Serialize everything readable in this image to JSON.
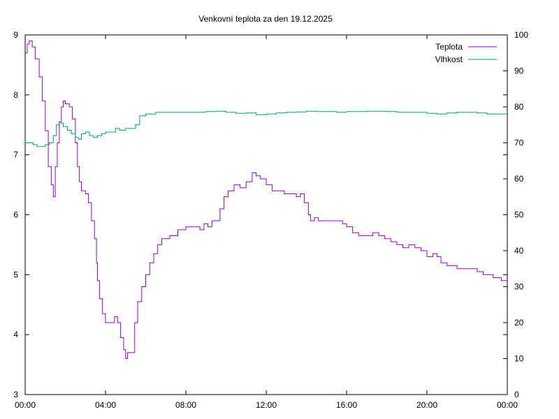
{
  "chart_data": {
    "type": "line",
    "title": "Venkovní teplota za den 19.12.2025",
    "xlabel": "",
    "ylabel": "",
    "y2label": "",
    "x_range_hours": [
      0,
      24
    ],
    "x_ticks": [
      {
        "hour": 0,
        "label": "00:00"
      },
      {
        "hour": 4,
        "label": "04:00"
      },
      {
        "hour": 8,
        "label": "08:00"
      },
      {
        "hour": 12,
        "label": "12:00"
      },
      {
        "hour": 16,
        "label": "16:00"
      },
      {
        "hour": 20,
        "label": "20:00"
      },
      {
        "hour": 24,
        "label": "00:00"
      }
    ],
    "y_left": {
      "range": [
        3,
        9
      ],
      "ticks": [
        "3",
        "4",
        "5",
        "6",
        "7",
        "8",
        "9"
      ]
    },
    "y_right": {
      "range": [
        0,
        100
      ],
      "ticks": [
        "0",
        "10",
        "20",
        "30",
        "40",
        "50",
        "60",
        "70",
        "80",
        "90",
        "100"
      ]
    },
    "grid": false,
    "legend_position": "top-right",
    "series": [
      {
        "name": "Teplota",
        "axis": "left",
        "color": "#9400d3",
        "points": [
          [
            0.0,
            8.7
          ],
          [
            0.1,
            8.85
          ],
          [
            0.2,
            8.9
          ],
          [
            0.35,
            8.8
          ],
          [
            0.5,
            8.6
          ],
          [
            0.7,
            8.3
          ],
          [
            0.85,
            7.9
          ],
          [
            1.0,
            7.4
          ],
          [
            1.15,
            6.8
          ],
          [
            1.3,
            6.5
          ],
          [
            1.4,
            6.3
          ],
          [
            1.5,
            6.8
          ],
          [
            1.6,
            7.2
          ],
          [
            1.7,
            7.55
          ],
          [
            1.8,
            7.8
          ],
          [
            1.9,
            7.9
          ],
          [
            2.0,
            7.85
          ],
          [
            2.2,
            7.8
          ],
          [
            2.35,
            7.6
          ],
          [
            2.5,
            7.2
          ],
          [
            2.6,
            6.8
          ],
          [
            2.7,
            6.55
          ],
          [
            2.8,
            6.4
          ],
          [
            3.0,
            6.35
          ],
          [
            3.15,
            6.2
          ],
          [
            3.3,
            5.9
          ],
          [
            3.45,
            5.6
          ],
          [
            3.55,
            5.2
          ],
          [
            3.6,
            4.9
          ],
          [
            3.7,
            4.6
          ],
          [
            3.85,
            4.35
          ],
          [
            4.0,
            4.2
          ],
          [
            4.3,
            4.2
          ],
          [
            4.45,
            4.3
          ],
          [
            4.6,
            4.2
          ],
          [
            4.75,
            3.95
          ],
          [
            4.9,
            3.75
          ],
          [
            5.0,
            3.6
          ],
          [
            5.1,
            3.7
          ],
          [
            5.3,
            3.7
          ],
          [
            5.45,
            4.2
          ],
          [
            5.6,
            4.55
          ],
          [
            5.8,
            4.8
          ],
          [
            6.0,
            5.0
          ],
          [
            6.2,
            5.2
          ],
          [
            6.4,
            5.35
          ],
          [
            6.6,
            5.5
          ],
          [
            6.8,
            5.6
          ],
          [
            7.2,
            5.65
          ],
          [
            7.6,
            5.75
          ],
          [
            8.0,
            5.8
          ],
          [
            8.3,
            5.8
          ],
          [
            8.5,
            5.8
          ],
          [
            8.7,
            5.75
          ],
          [
            8.9,
            5.85
          ],
          [
            9.1,
            5.8
          ],
          [
            9.3,
            5.9
          ],
          [
            9.5,
            5.9
          ],
          [
            9.7,
            6.1
          ],
          [
            9.9,
            6.3
          ],
          [
            10.1,
            6.4
          ],
          [
            10.4,
            6.5
          ],
          [
            10.7,
            6.45
          ],
          [
            11.0,
            6.55
          ],
          [
            11.3,
            6.7
          ],
          [
            11.5,
            6.65
          ],
          [
            11.7,
            6.6
          ],
          [
            12.0,
            6.5
          ],
          [
            12.3,
            6.4
          ],
          [
            12.6,
            6.4
          ],
          [
            12.9,
            6.35
          ],
          [
            13.2,
            6.35
          ],
          [
            13.5,
            6.3
          ],
          [
            13.7,
            6.35
          ],
          [
            13.9,
            6.2
          ],
          [
            14.1,
            6.0
          ],
          [
            14.2,
            5.9
          ],
          [
            14.4,
            5.95
          ],
          [
            14.6,
            5.9
          ],
          [
            15.0,
            5.9
          ],
          [
            15.5,
            5.9
          ],
          [
            15.8,
            5.85
          ],
          [
            16.0,
            5.8
          ],
          [
            16.3,
            5.7
          ],
          [
            16.6,
            5.65
          ],
          [
            17.0,
            5.65
          ],
          [
            17.3,
            5.7
          ],
          [
            17.6,
            5.65
          ],
          [
            17.9,
            5.6
          ],
          [
            18.2,
            5.55
          ],
          [
            18.5,
            5.5
          ],
          [
            18.8,
            5.45
          ],
          [
            19.1,
            5.5
          ],
          [
            19.4,
            5.45
          ],
          [
            19.7,
            5.4
          ],
          [
            20.0,
            5.3
          ],
          [
            20.3,
            5.35
          ],
          [
            20.5,
            5.3
          ],
          [
            20.7,
            5.2
          ],
          [
            21.0,
            5.15
          ],
          [
            21.5,
            5.1
          ],
          [
            22.0,
            5.1
          ],
          [
            22.5,
            5.05
          ],
          [
            22.8,
            5.0
          ],
          [
            23.1,
            5.0
          ],
          [
            23.3,
            4.95
          ],
          [
            23.5,
            4.95
          ],
          [
            23.7,
            4.9
          ],
          [
            24.0,
            4.9
          ]
        ]
      },
      {
        "name": "Vlhkost",
        "axis": "right",
        "color": "#009e73",
        "points": [
          [
            0.0,
            70.0
          ],
          [
            0.2,
            70.0
          ],
          [
            0.4,
            69.5
          ],
          [
            0.6,
            69.0
          ],
          [
            0.8,
            69.0
          ],
          [
            1.0,
            69.5
          ],
          [
            1.2,
            70.0
          ],
          [
            1.4,
            72.0
          ],
          [
            1.55,
            75.0
          ],
          [
            1.7,
            75.5
          ],
          [
            1.9,
            74.5
          ],
          [
            2.1,
            73.5
          ],
          [
            2.3,
            72.5
          ],
          [
            2.5,
            71.5
          ],
          [
            2.65,
            71.0
          ],
          [
            2.8,
            72.5
          ],
          [
            3.0,
            73.0
          ],
          [
            3.2,
            72.0
          ],
          [
            3.4,
            71.5
          ],
          [
            3.6,
            72.0
          ],
          [
            3.8,
            72.5
          ],
          [
            4.0,
            73.0
          ],
          [
            4.3,
            73.0
          ],
          [
            4.5,
            74.0
          ],
          [
            4.7,
            73.5
          ],
          [
            5.0,
            74.0
          ],
          [
            5.3,
            74.0
          ],
          [
            5.5,
            75.0
          ],
          [
            5.7,
            77.5
          ],
          [
            6.0,
            78.0
          ],
          [
            6.5,
            78.5
          ],
          [
            7.0,
            78.5
          ],
          [
            7.5,
            78.5
          ],
          [
            8.0,
            78.5
          ],
          [
            8.5,
            78.5
          ],
          [
            9.0,
            78.7
          ],
          [
            9.5,
            78.8
          ],
          [
            10.0,
            78.5
          ],
          [
            10.5,
            78.2
          ],
          [
            11.0,
            78.3
          ],
          [
            11.5,
            77.8
          ],
          [
            12.0,
            78.0
          ],
          [
            12.5,
            78.3
          ],
          [
            13.0,
            78.5
          ],
          [
            13.5,
            78.6
          ],
          [
            14.0,
            78.8
          ],
          [
            14.5,
            78.7
          ],
          [
            15.0,
            78.7
          ],
          [
            15.5,
            78.5
          ],
          [
            16.0,
            78.7
          ],
          [
            16.5,
            78.7
          ],
          [
            17.0,
            78.8
          ],
          [
            17.5,
            78.8
          ],
          [
            18.0,
            78.7
          ],
          [
            18.5,
            78.5
          ],
          [
            19.0,
            78.5
          ],
          [
            19.5,
            78.5
          ],
          [
            20.0,
            78.2
          ],
          [
            20.5,
            78.0
          ],
          [
            21.0,
            78.3
          ],
          [
            21.5,
            78.5
          ],
          [
            22.0,
            78.5
          ],
          [
            22.5,
            78.3
          ],
          [
            23.0,
            78.0
          ],
          [
            23.5,
            78.0
          ],
          [
            24.0,
            78.0
          ]
        ]
      }
    ]
  }
}
